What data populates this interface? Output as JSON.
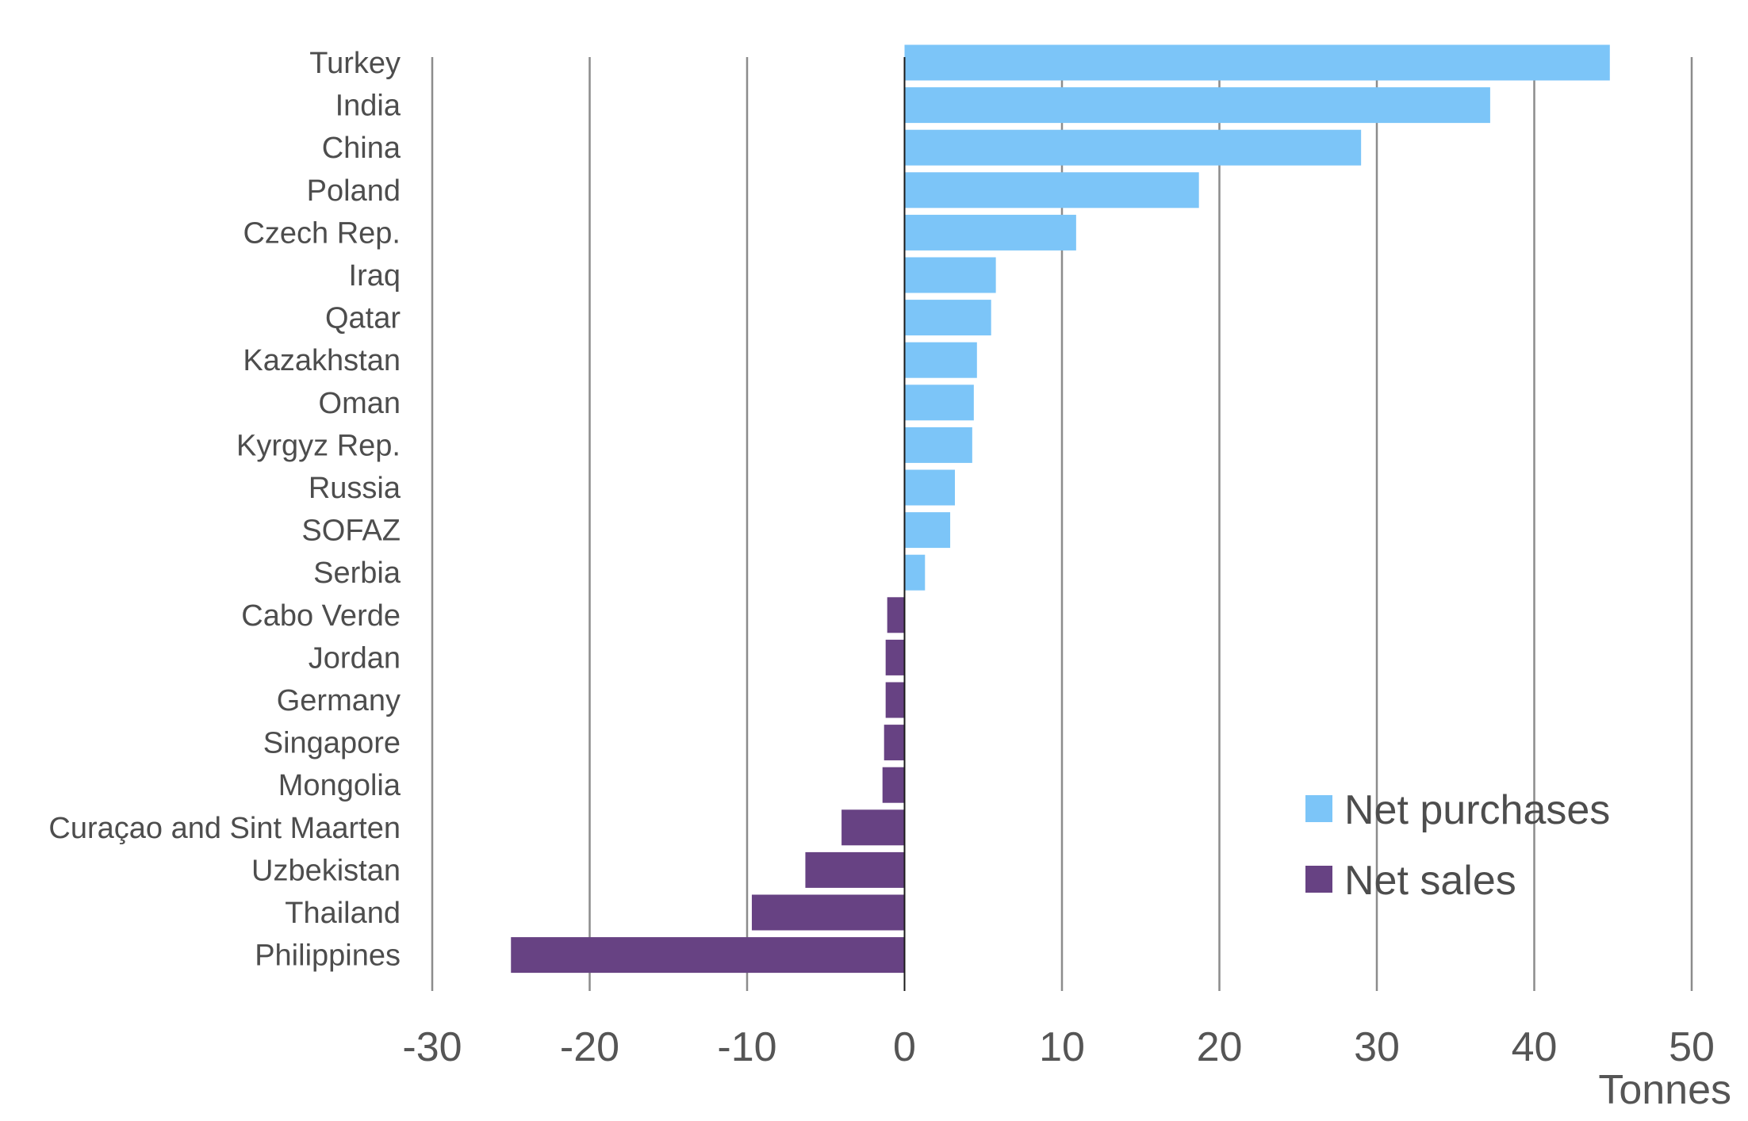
{
  "chart_data": {
    "type": "bar",
    "orientation": "horizontal",
    "categories": [
      "Turkey",
      "India",
      "China",
      "Poland",
      "Czech Rep.",
      "Iraq",
      "Qatar",
      "Kazakhstan",
      "Oman",
      "Kyrgyz Rep.",
      "Russia",
      "SOFAZ",
      "Serbia",
      "Cabo Verde",
      "Jordan",
      "Germany",
      "Singapore",
      "Mongolia",
      "Curaçao and Sint Maarten",
      "Uzbekistan",
      "Thailand",
      "Philippines"
    ],
    "values": [
      44.8,
      37.2,
      29.0,
      18.7,
      10.9,
      5.8,
      5.5,
      4.6,
      4.4,
      4.3,
      3.2,
      2.9,
      1.3,
      -1.1,
      -1.2,
      -1.2,
      -1.3,
      -1.4,
      -4.0,
      -6.3,
      -9.7,
      -25.0
    ],
    "series": [
      {
        "name": "Net purchases",
        "color": "#7cc5f8"
      },
      {
        "name": "Net sales",
        "color": "#674283"
      }
    ],
    "xlabel": "Tonnes",
    "ylabel": "",
    "xlim": [
      -30,
      50
    ],
    "xticks": [
      "-30",
      "-20",
      "-10",
      "0",
      "10",
      "20",
      "30",
      "40",
      "50"
    ],
    "grid": "vertical",
    "legend_position": "bottom-right"
  }
}
